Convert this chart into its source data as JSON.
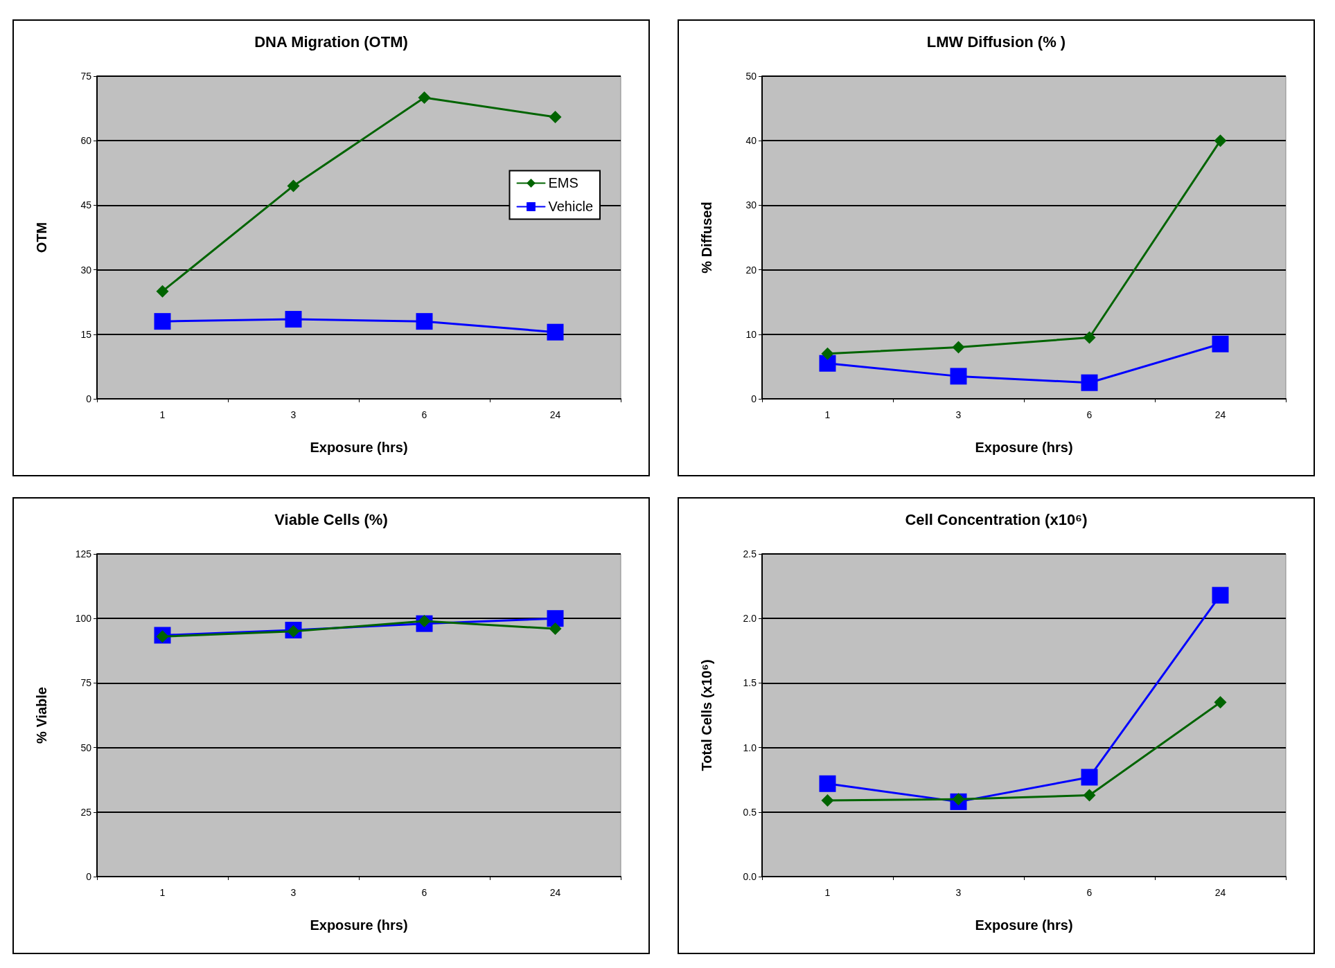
{
  "chart_data": [
    {
      "type": "line",
      "title": "DNA Migration (OTM)",
      "xlabel": "Exposure (hrs)",
      "ylabel": "OTM",
      "categories": [
        "1",
        "3",
        "6",
        "24"
      ],
      "ylim": [
        0,
        75
      ],
      "yticks": [
        0,
        15,
        30,
        45,
        60,
        75
      ],
      "grid": "y",
      "legend": "right",
      "series": [
        {
          "name": "EMS",
          "color": "#006400",
          "marker": "diamond",
          "values": [
            25,
            49.5,
            70,
            65.5
          ]
        },
        {
          "name": "Vehicle",
          "color": "#0000ff",
          "marker": "square",
          "values": [
            18,
            18.5,
            18,
            15.5
          ]
        }
      ]
    },
    {
      "type": "line",
      "title": "LMW Diffusion (% )",
      "xlabel": "Exposure (hrs)",
      "ylabel": "% Diffused",
      "categories": [
        "1",
        "3",
        "6",
        "24"
      ],
      "ylim": [
        0,
        50
      ],
      "yticks": [
        0,
        10,
        20,
        30,
        40,
        50
      ],
      "grid": "y",
      "legend": false,
      "series": [
        {
          "color": "#006400",
          "marker": "diamond",
          "values": [
            7,
            8,
            9.5,
            40
          ]
        },
        {
          "color": "#0000ff",
          "marker": "square",
          "values": [
            5.5,
            3.5,
            2.5,
            8.5
          ]
        }
      ]
    },
    {
      "type": "line",
      "title": "Viable Cells (%)",
      "xlabel": "Exposure (hrs)",
      "ylabel": "% Viable",
      "categories": [
        "1",
        "3",
        "6",
        "24"
      ],
      "ylim": [
        0,
        125
      ],
      "yticks": [
        0,
        25,
        50,
        75,
        100,
        125
      ],
      "grid": "y",
      "legend": false,
      "series": [
        {
          "color": "#006400",
          "marker": "diamond",
          "values": [
            93,
            95,
            99,
            96
          ]
        },
        {
          "color": "#0000ff",
          "marker": "square",
          "values": [
            93.5,
            95.5,
            98,
            100
          ]
        }
      ]
    },
    {
      "type": "line",
      "title": "Cell Concentration (x10⁶)",
      "xlabel": "Exposure (hrs)",
      "ylabel": "Total Cells (x10⁶)",
      "categories": [
        "1",
        "3",
        "6",
        "24"
      ],
      "ylim": [
        0,
        2.5
      ],
      "yticks": [
        {
          "value": 0,
          "label": "0.0"
        },
        0.5,
        {
          "value": 1,
          "label": "1.0"
        },
        1.5,
        {
          "value": 2,
          "label": "2.0"
        },
        2.5
      ],
      "grid": "y",
      "legend": false,
      "series": [
        {
          "color": "#006400",
          "marker": "diamond",
          "values": [
            0.59,
            0.6,
            0.63,
            1.35
          ]
        },
        {
          "color": "#0000ff",
          "marker": "square",
          "values": [
            0.72,
            0.58,
            0.77,
            2.18
          ]
        }
      ]
    }
  ]
}
